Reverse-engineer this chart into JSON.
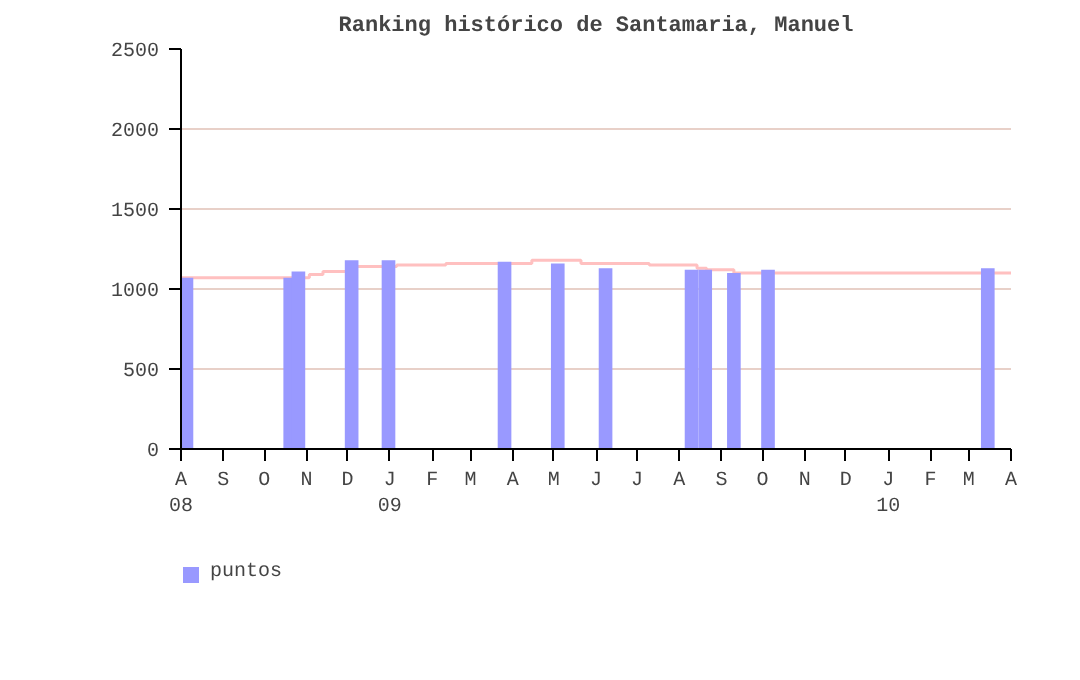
{
  "chart_data": {
    "type": "bar",
    "title": "Ranking histórico de Santamaria, Manuel",
    "xlim": [
      "2008-08-01",
      "2010-04-01"
    ],
    "xticks": [
      {
        "value": "2008-08-01",
        "label": "A\n08"
      },
      {
        "value": "2008-09-01",
        "label": "S"
      },
      {
        "value": "2008-10-01",
        "label": "O"
      },
      {
        "value": "2008-11-01",
        "label": "N"
      },
      {
        "value": "2008-12-01",
        "label": "D"
      },
      {
        "value": "2009-01-01",
        "label": "J\n09"
      },
      {
        "value": "2009-02-01",
        "label": "F"
      },
      {
        "value": "2009-03-01",
        "label": "M"
      },
      {
        "value": "2009-04-01",
        "label": "A"
      },
      {
        "value": "2009-05-01",
        "label": "M"
      },
      {
        "value": "2009-06-01",
        "label": "J"
      },
      {
        "value": "2009-07-01",
        "label": "J"
      },
      {
        "value": "2009-08-01",
        "label": "A"
      },
      {
        "value": "2009-09-01",
        "label": "S"
      },
      {
        "value": "2009-10-01",
        "label": "O"
      },
      {
        "value": "2009-11-01",
        "label": "N"
      },
      {
        "value": "2009-12-01",
        "label": "D"
      },
      {
        "value": "2010-01-01",
        "label": "J\n10"
      },
      {
        "value": "2010-02-01",
        "label": "F"
      },
      {
        "value": "2010-03-01",
        "label": "M"
      },
      {
        "value": "2010-04-01",
        "label": "A"
      }
    ],
    "ylim": [
      0,
      2500
    ],
    "yticks": [
      0,
      500,
      1000,
      1500,
      2000,
      2500
    ],
    "grid": "y",
    "legend": "bottom left",
    "series": [
      {
        "name": "puntos",
        "color": "#9999ff",
        "x": [
          "2008-08-05",
          "2008-10-20",
          "2008-10-26",
          "2008-12-04",
          "2008-12-31",
          "2009-03-26",
          "2009-05-04",
          "2009-06-08",
          "2009-08-10",
          "2009-08-20",
          "2009-09-10",
          "2009-10-05",
          "2010-03-15"
        ],
        "values": [
          1070,
          1070,
          1110,
          1180,
          1180,
          1170,
          1160,
          1130,
          1120,
          1120,
          1100,
          1120,
          1130
        ]
      },
      {
        "type": "step",
        "color": "#ffc0c0",
        "x": [
          "2008-08-01",
          "2008-11-03",
          "2008-11-13",
          "2008-12-01",
          "2008-12-24",
          "2009-01-06",
          "2009-02-11",
          "2009-04-15",
          "2009-05-21",
          "2009-07-10",
          "2009-08-14",
          "2009-08-21",
          "2009-09-10",
          "2010-04-01"
        ],
        "values": [
          1070,
          1090,
          1110,
          1140,
          1140,
          1150,
          1160,
          1180,
          1160,
          1150,
          1130,
          1120,
          1100,
          1100
        ]
      }
    ]
  }
}
